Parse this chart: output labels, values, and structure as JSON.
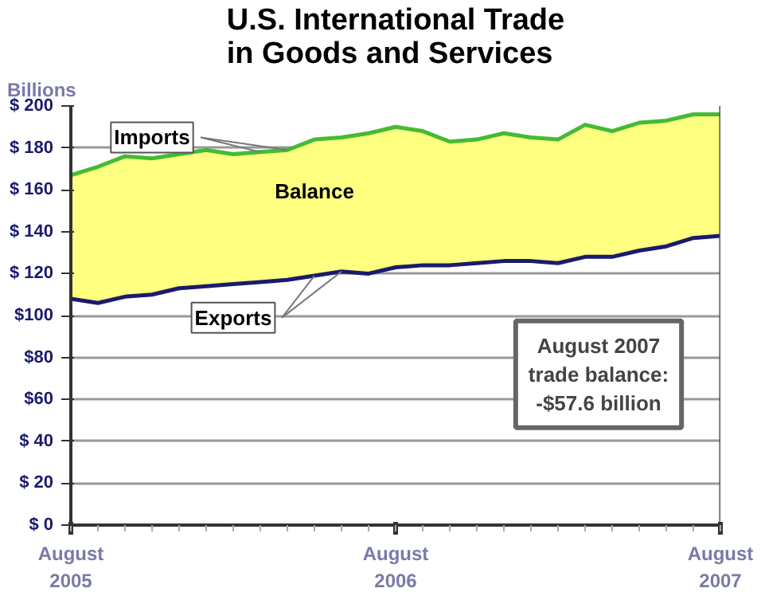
{
  "chart_data": {
    "type": "line",
    "title": "U.S. International Trade\nin Goods and Services",
    "ylabel": "Billions",
    "x": [
      "2005-08",
      "2005-09",
      "2005-10",
      "2005-11",
      "2005-12",
      "2006-01",
      "2006-02",
      "2006-03",
      "2006-04",
      "2006-05",
      "2006-06",
      "2006-07",
      "2006-08",
      "2006-09",
      "2006-10",
      "2006-11",
      "2006-12",
      "2007-01",
      "2007-02",
      "2007-03",
      "2007-04",
      "2007-05",
      "2007-06",
      "2007-07",
      "2007-08"
    ],
    "series": [
      {
        "name": "Imports",
        "type": "area",
        "color": "#44bb33",
        "values": [
          167,
          171,
          176,
          175,
          177,
          179,
          177,
          178,
          179,
          184,
          185,
          187,
          190,
          188,
          183,
          184,
          187,
          185,
          184,
          191,
          188,
          192,
          193,
          196,
          196
        ]
      },
      {
        "name": "Exports",
        "color": "#1a1a6e",
        "values": [
          108,
          106,
          109,
          110,
          113,
          114,
          115,
          116,
          117,
          119,
          121,
          120,
          123,
          124,
          124,
          125,
          126,
          126,
          125,
          128,
          128,
          131,
          133,
          137,
          138
        ]
      }
    ],
    "xlim": [
      "2005-08",
      "2007-08"
    ],
    "xticks": [
      {
        "value": "2005-08",
        "label": "August\n2005"
      },
      {
        "value": "2006-08",
        "label": "August\n2006"
      },
      {
        "value": "2007-08",
        "label": "August\n2007"
      }
    ],
    "ylim": [
      0,
      200
    ],
    "yticks": [
      {
        "value": 0,
        "label": "$ 0"
      },
      {
        "value": 20,
        "label": "$ 20"
      },
      {
        "value": 40,
        "label": "$ 40"
      },
      {
        "value": 60,
        "label": "$60"
      },
      {
        "value": 80,
        "label": "$80"
      },
      {
        "value": 100,
        "label": "$100"
      },
      {
        "value": 120,
        "label": "$ 120"
      },
      {
        "value": 140,
        "label": "$ 140"
      },
      {
        "value": 160,
        "label": "$ 160"
      },
      {
        "value": 180,
        "label": "$ 180"
      },
      {
        "value": 200,
        "label": "$ 200"
      }
    ],
    "grid": "y",
    "marker": "none",
    "line_style": "solid",
    "annotations": [
      "Balance",
      "August 2007\ntrade balance:\n-$57.6 billion"
    ]
  }
}
